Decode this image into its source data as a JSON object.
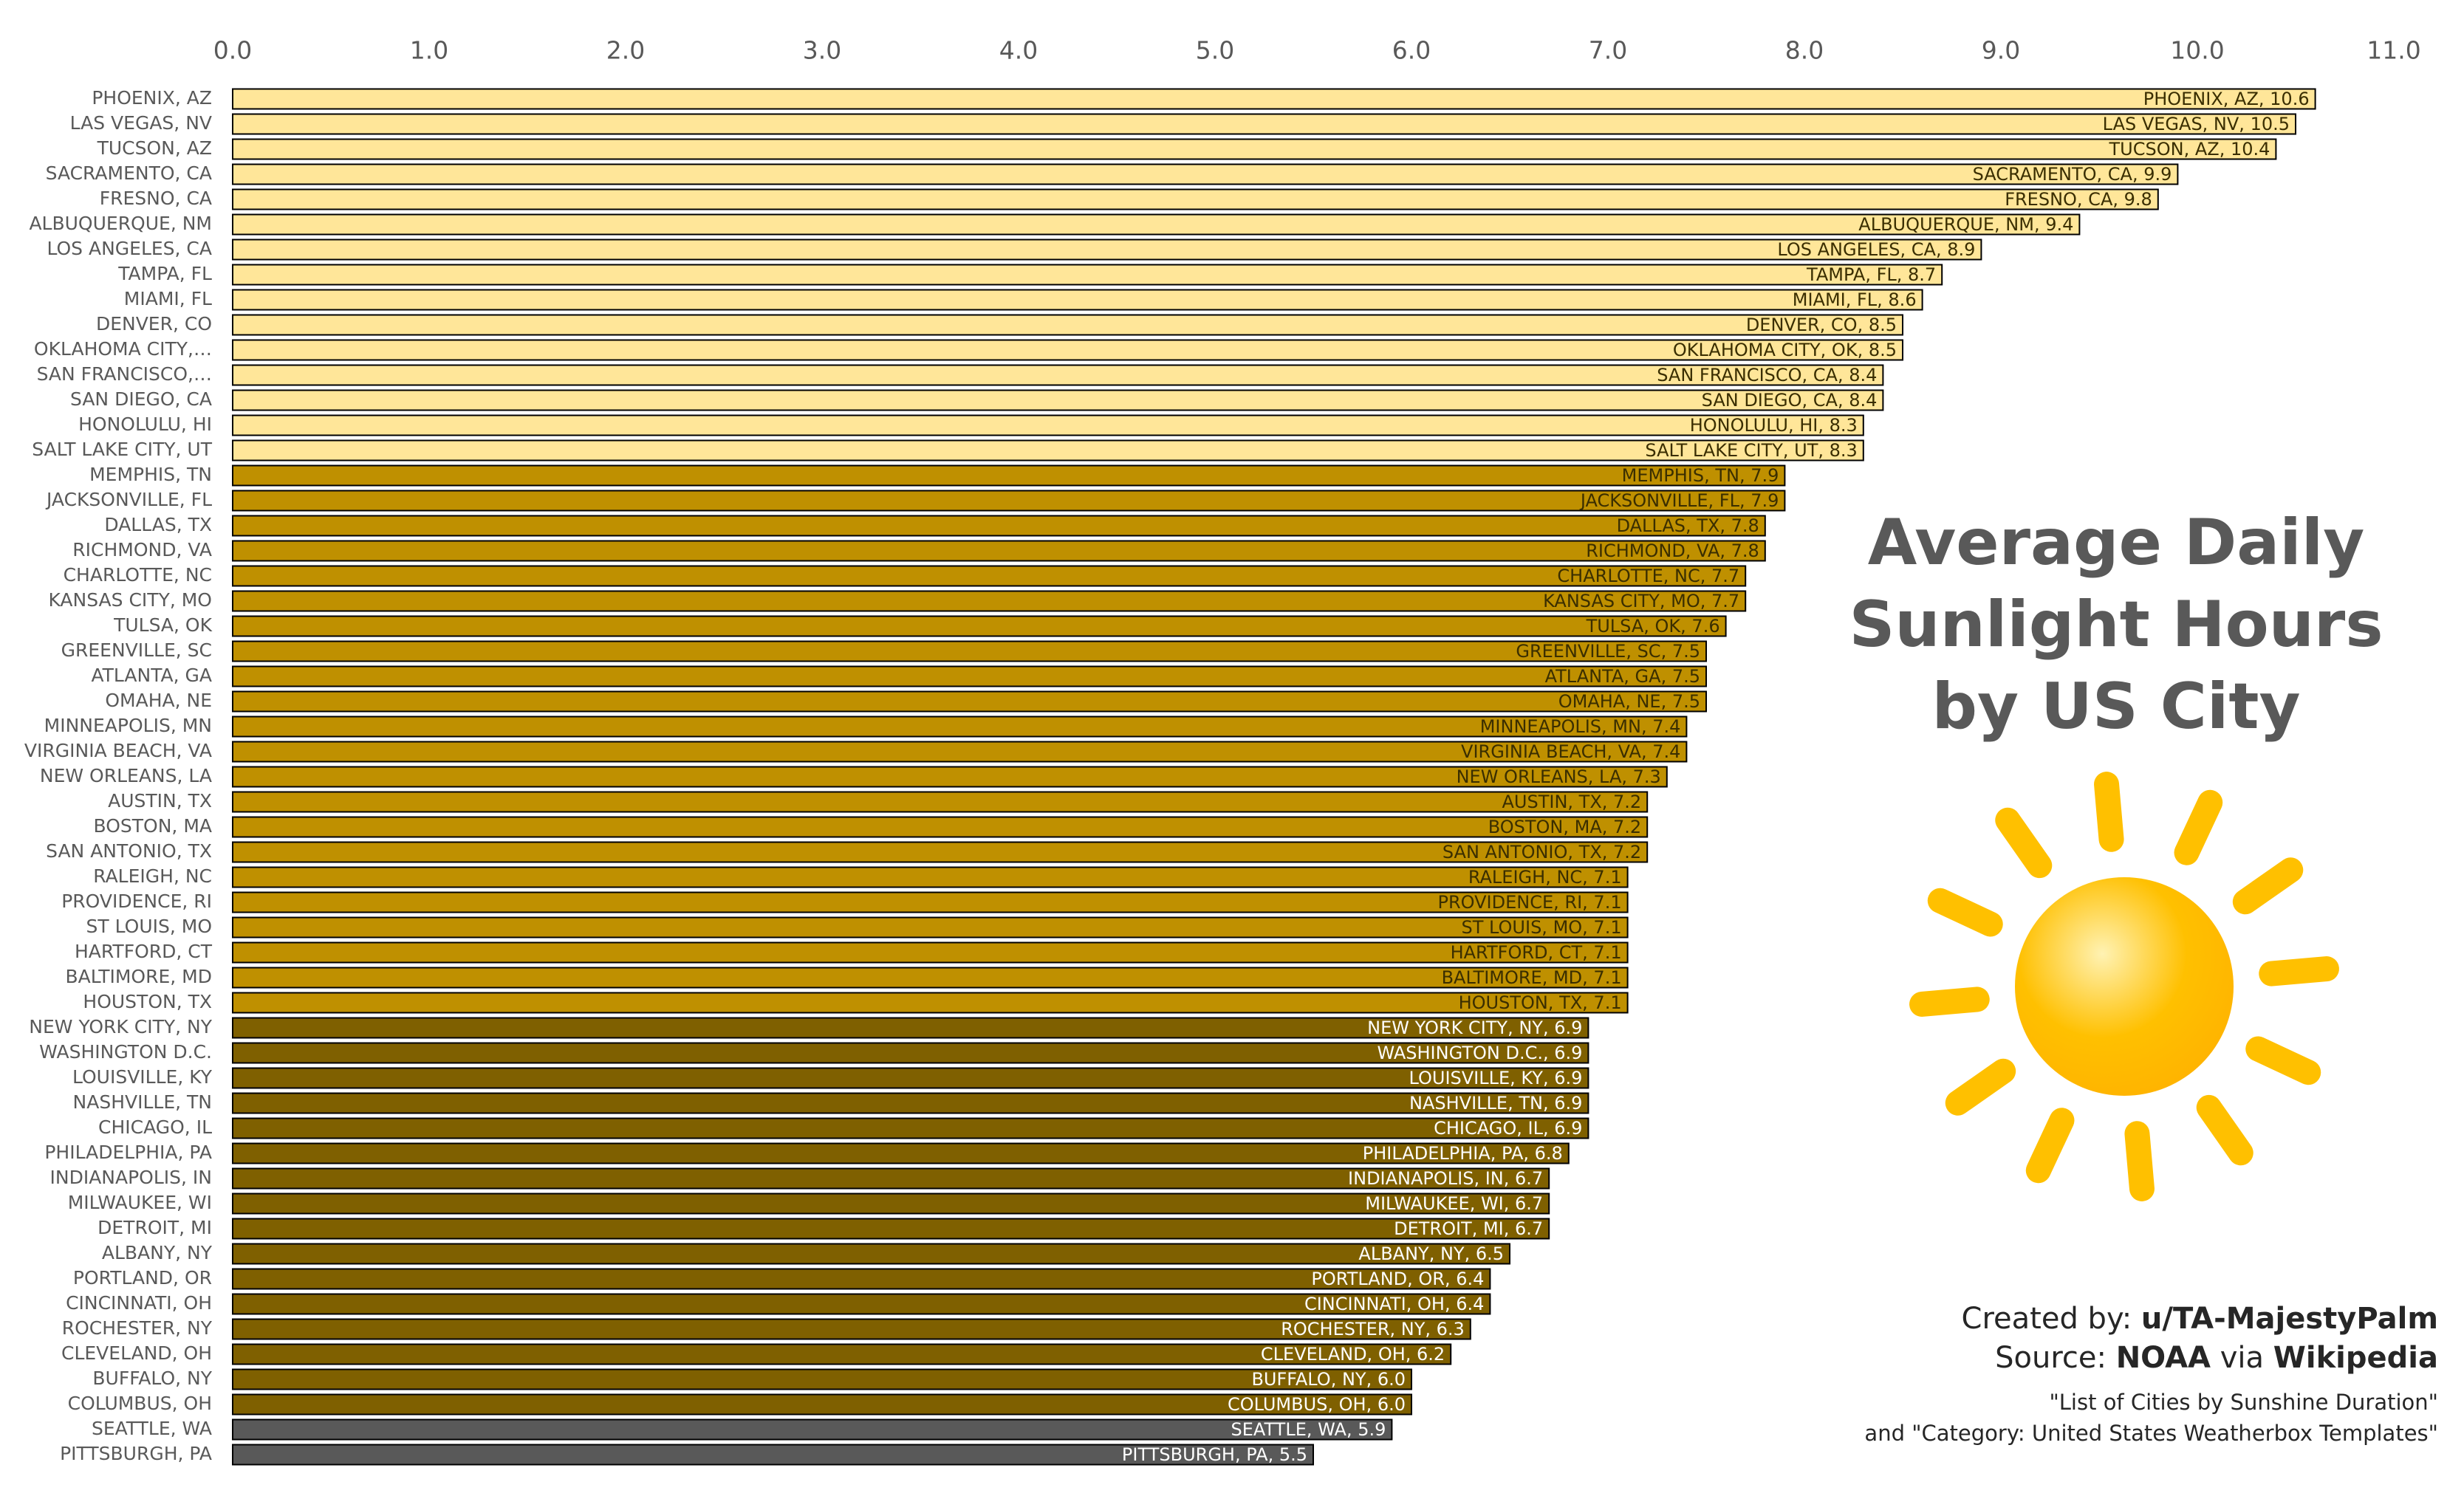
{
  "chart_data": {
    "type": "bar",
    "orientation": "horizontal",
    "title": "Average Daily Sunlight Hours by US City",
    "categories": [
      "PHOENIX, AZ",
      "LAS VEGAS, NV",
      "TUCSON, AZ",
      "SACRAMENTO, CA",
      "FRESNO, CA",
      "ALBUQUERQUE, NM",
      "LOS ANGELES, CA",
      "TAMPA, FL",
      "MIAMI, FL",
      "DENVER, CO",
      "OKLAHOMA CITY,…",
      "SAN FRANCISCO,…",
      "SAN DIEGO, CA",
      "HONOLULU, HI",
      "SALT LAKE CITY, UT",
      "MEMPHIS, TN",
      "JACKSONVILLE, FL",
      "DALLAS, TX",
      "RICHMOND, VA",
      "CHARLOTTE, NC",
      "KANSAS CITY, MO",
      "TULSA, OK",
      "GREENVILLE, SC",
      "ATLANTA, GA",
      "OMAHA, NE",
      "MINNEAPOLIS, MN",
      "VIRGINIA BEACH, VA",
      "NEW ORLEANS, LA",
      "AUSTIN, TX",
      "BOSTON, MA",
      "SAN ANTONIO, TX",
      "RALEIGH, NC",
      "PROVIDENCE, RI",
      "ST LOUIS, MO",
      "HARTFORD, CT",
      "BALTIMORE, MD",
      "HOUSTON, TX",
      "NEW YORK CITY, NY",
      "WASHINGTON D.C.",
      "LOUISVILLE, KY",
      "NASHVILLE, TN",
      "CHICAGO, IL",
      "PHILADELPHIA, PA",
      "INDIANAPOLIS, IN",
      "MILWAUKEE, WI",
      "DETROIT, MI",
      "ALBANY, NY",
      "PORTLAND, OR",
      "CINCINNATI, OH",
      "ROCHESTER, NY",
      "CLEVELAND, OH",
      "BUFFALO, NY",
      "COLUMBUS, OH",
      "SEATTLE, WA",
      "PITTSBURGH, PA"
    ],
    "values": [
      10.6,
      10.5,
      10.4,
      9.9,
      9.8,
      9.4,
      8.9,
      8.7,
      8.6,
      8.5,
      8.5,
      8.4,
      8.4,
      8.3,
      8.3,
      7.9,
      7.9,
      7.8,
      7.8,
      7.7,
      7.7,
      7.6,
      7.5,
      7.5,
      7.5,
      7.4,
      7.4,
      7.3,
      7.2,
      7.2,
      7.2,
      7.1,
      7.1,
      7.1,
      7.1,
      7.1,
      7.1,
      6.9,
      6.9,
      6.9,
      6.9,
      6.9,
      6.8,
      6.7,
      6.7,
      6.7,
      6.5,
      6.4,
      6.4,
      6.3,
      6.2,
      6.0,
      6.0,
      5.9,
      5.5
    ],
    "value_labels": [
      "PHOENIX, AZ, 10.6",
      "LAS VEGAS, NV, 10.5",
      "TUCSON, AZ, 10.4",
      "SACRAMENTO, CA, 9.9",
      "FRESNO, CA, 9.8",
      "ALBUQUERQUE, NM, 9.4",
      "LOS ANGELES, CA, 8.9",
      "TAMPA, FL, 8.7",
      "MIAMI, FL, 8.6",
      "DENVER, CO, 8.5",
      "OKLAHOMA CITY, OK, 8.5",
      "SAN FRANCISCO, CA, 8.4",
      "SAN DIEGO, CA, 8.4",
      "HONOLULU, HI, 8.3",
      "SALT LAKE CITY, UT, 8.3",
      "MEMPHIS, TN, 7.9",
      "JACKSONVILLE, FL, 7.9",
      "DALLAS, TX, 7.8",
      "RICHMOND, VA, 7.8",
      "CHARLOTTE, NC, 7.7",
      "KANSAS CITY, MO, 7.7",
      "TULSA, OK, 7.6",
      "GREENVILLE, SC, 7.5",
      "ATLANTA, GA, 7.5",
      "OMAHA, NE, 7.5",
      "MINNEAPOLIS, MN, 7.4",
      "VIRGINIA BEACH, VA, 7.4",
      "NEW ORLEANS, LA, 7.3",
      "AUSTIN, TX, 7.2",
      "BOSTON, MA, 7.2",
      "SAN ANTONIO, TX, 7.2",
      "RALEIGH, NC, 7.1",
      "PROVIDENCE, RI, 7.1",
      "ST LOUIS, MO, 7.1",
      "HARTFORD, CT, 7.1",
      "BALTIMORE, MD, 7.1",
      "HOUSTON, TX, 7.1",
      "NEW YORK CITY, NY, 6.9",
      "WASHINGTON D.C., 6.9",
      "LOUISVILLE, KY, 6.9",
      "NASHVILLE, TN, 6.9",
      "CHICAGO, IL, 6.9",
      "PHILADELPHIA, PA, 6.8",
      "INDIANAPOLIS, IN, 6.7",
      "MILWAUKEE, WI, 6.7",
      "DETROIT, MI, 6.7",
      "ALBANY, NY, 6.5",
      "PORTLAND, OR, 6.4",
      "CINCINNATI, OH, 6.4",
      "ROCHESTER, NY, 6.3",
      "CLEVELAND, OH, 6.2",
      "BUFFALO, NY, 6.0",
      "COLUMBUS, OH, 6.0",
      "SEATTLE, WA, 5.9",
      "PITTSBURGH, PA, 5.5"
    ],
    "colors": [
      "#ffe699",
      "#ffe699",
      "#ffe699",
      "#ffe699",
      "#ffe699",
      "#ffe699",
      "#ffe699",
      "#ffe699",
      "#ffe699",
      "#ffe699",
      "#ffe699",
      "#ffe699",
      "#ffe699",
      "#ffe699",
      "#ffe699",
      "#bf9000",
      "#bf9000",
      "#bf9000",
      "#bf9000",
      "#bf9000",
      "#bf9000",
      "#bf9000",
      "#bf9000",
      "#bf9000",
      "#bf9000",
      "#bf9000",
      "#bf9000",
      "#bf9000",
      "#bf9000",
      "#bf9000",
      "#bf9000",
      "#bf9000",
      "#bf9000",
      "#bf9000",
      "#bf9000",
      "#bf9000",
      "#bf9000",
      "#7f6000",
      "#7f6000",
      "#7f6000",
      "#7f6000",
      "#7f6000",
      "#7f6000",
      "#7f6000",
      "#7f6000",
      "#7f6000",
      "#7f6000",
      "#7f6000",
      "#7f6000",
      "#7f6000",
      "#7f6000",
      "#7f6000",
      "#7f6000",
      "#595959",
      "#595959"
    ],
    "xlim": [
      0,
      11
    ],
    "xticks": [
      {
        "value": 0,
        "label": "0.0"
      },
      {
        "value": 1,
        "label": "1.0"
      },
      {
        "value": 2,
        "label": "2.0"
      },
      {
        "value": 3,
        "label": "3.0"
      },
      {
        "value": 4,
        "label": "4.0"
      },
      {
        "value": 5,
        "label": "5.0"
      },
      {
        "value": 6,
        "label": "6.0"
      },
      {
        "value": 7,
        "label": "7.0"
      },
      {
        "value": 8,
        "label": "8.0"
      },
      {
        "value": 9,
        "label": "9.0"
      },
      {
        "value": 10,
        "label": "10.0"
      },
      {
        "value": 11,
        "label": "11.0"
      }
    ],
    "grid": false,
    "credits": {
      "created_label": "Created by:",
      "created_by": "u/TA-MajestyPalm",
      "source_label": "Source:",
      "source": "NOAA",
      "via": "via",
      "site": "Wikipedia",
      "note_1": "\"List of Cities by Sunshine Duration\"",
      "note_2": "and \"Category: United States Weatherbox Templates\""
    }
  }
}
